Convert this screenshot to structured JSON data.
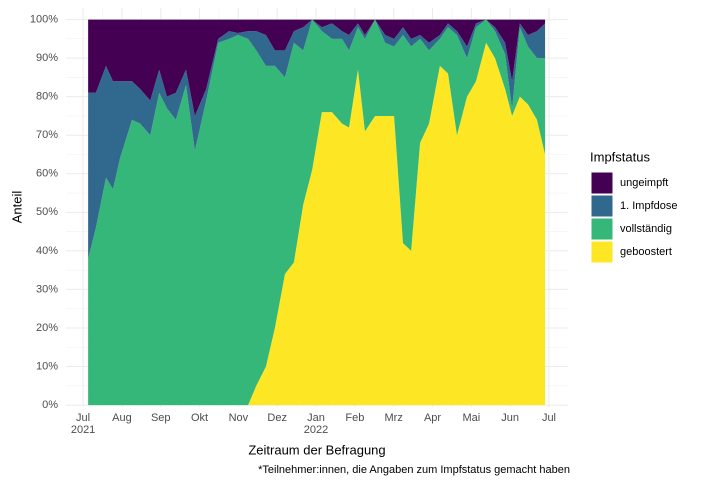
{
  "chart_data": {
    "type": "stacked_area",
    "x_label": "Zeitraum der Befragung",
    "y_label": "Anteil",
    "caption": "*Teilnehmer:innen, die Angaben zum Impfstatus gemacht haben",
    "legend_title": "Impfstatus",
    "legend": "right",
    "grid": true,
    "x": [
      0.13,
      0.33,
      0.59,
      0.77,
      0.95,
      1.26,
      1.47,
      1.73,
      1.96,
      2.16,
      2.39,
      2.65,
      2.88,
      3.17,
      3.48,
      3.76,
      3.99,
      4.25,
      4.46,
      4.71,
      4.94,
      5.2,
      5.43,
      5.67,
      5.9,
      6.15,
      6.41,
      6.67,
      6.85,
      7.08,
      7.26,
      7.52,
      7.78,
      8.01,
      8.24,
      8.45,
      8.68,
      8.91,
      9.19,
      9.4,
      9.63,
      9.89,
      10.12,
      10.38,
      10.61,
      10.87,
      11.05,
      11.25,
      11.46,
      11.69,
      11.9
    ],
    "series": [
      {
        "name": "ungeimpft",
        "color": "#440154",
        "values": [
          19,
          19,
          12,
          16,
          16,
          16,
          18,
          21,
          13,
          20,
          19,
          13,
          25,
          18,
          5,
          3,
          3.5,
          3,
          3,
          4,
          8,
          8,
          3,
          2,
          0,
          2,
          1,
          3,
          4,
          1,
          4,
          0,
          4,
          5,
          2,
          5,
          4,
          6,
          4,
          1,
          3,
          7,
          1,
          0,
          2,
          6,
          16,
          1,
          4,
          3,
          1
        ]
      },
      {
        "name": "1. Impfdose",
        "color": "#31688e",
        "values": [
          43,
          35,
          29,
          28,
          20,
          10,
          9,
          9,
          6,
          3,
          7,
          4,
          9,
          3,
          1,
          2,
          0.5,
          2,
          5,
          8,
          4,
          7,
          3,
          6,
          0,
          1,
          4,
          2,
          4,
          1,
          1,
          0,
          2,
          2,
          2,
          2,
          1,
          2,
          1,
          1,
          1,
          3,
          1,
          0,
          1,
          3,
          7,
          1,
          3,
          7,
          9
        ]
      },
      {
        "name": "vollständig",
        "color": "#35b779",
        "values": [
          38,
          46,
          59,
          56,
          64,
          74,
          73,
          70,
          81,
          77,
          74,
          83,
          66,
          79,
          94,
          95,
          96,
          95,
          87,
          78,
          68,
          51,
          57,
          40,
          39,
          21,
          19,
          22,
          20,
          11,
          24,
          25,
          19,
          18,
          54,
          53,
          27,
          19,
          7,
          12,
          26,
          10,
          14,
          6,
          7,
          9,
          2,
          18,
          15,
          16,
          25
        ]
      },
      {
        "name": "geboostert",
        "color": "#fde725",
        "values": [
          0,
          0,
          0,
          0,
          0,
          0,
          0,
          0,
          0,
          0,
          0,
          0,
          0,
          0,
          0,
          0,
          0,
          0,
          5,
          10,
          20,
          34,
          37,
          52,
          61,
          76,
          76,
          73,
          72,
          87,
          71,
          75,
          75,
          75,
          42,
          40,
          68,
          73,
          88,
          86,
          70,
          80,
          84,
          94,
          90,
          82,
          75,
          80,
          78,
          74,
          65
        ]
      }
    ],
    "xlim": [
      -0.44,
      12.49
    ],
    "xticks": [
      {
        "value": 0,
        "label": "Jul\n2021"
      },
      {
        "value": 1,
        "label": "Aug"
      },
      {
        "value": 2,
        "label": "Sep"
      },
      {
        "value": 3,
        "label": "Okt"
      },
      {
        "value": 4,
        "label": "Nov"
      },
      {
        "value": 5,
        "label": "Dez"
      },
      {
        "value": 6,
        "label": "Jan\n2022"
      },
      {
        "value": 7,
        "label": "Feb"
      },
      {
        "value": 8,
        "label": "Mrz"
      },
      {
        "value": 9,
        "label": "Apr"
      },
      {
        "value": 10,
        "label": "Mai"
      },
      {
        "value": 11,
        "label": "Jun"
      },
      {
        "value": 12,
        "label": "Jul"
      }
    ],
    "ylim": [
      -0.5,
      103
    ],
    "yticks": [
      {
        "value": 0,
        "label": "0%"
      },
      {
        "value": 10,
        "label": "10%"
      },
      {
        "value": 20,
        "label": "20%"
      },
      {
        "value": 30,
        "label": "30%"
      },
      {
        "value": 40,
        "label": "40%"
      },
      {
        "value": 50,
        "label": "50%"
      },
      {
        "value": 60,
        "label": "60%"
      },
      {
        "value": 70,
        "label": "70%"
      },
      {
        "value": 80,
        "label": "80%"
      },
      {
        "value": 90,
        "label": "90%"
      },
      {
        "value": 100,
        "label": "100%"
      }
    ]
  }
}
